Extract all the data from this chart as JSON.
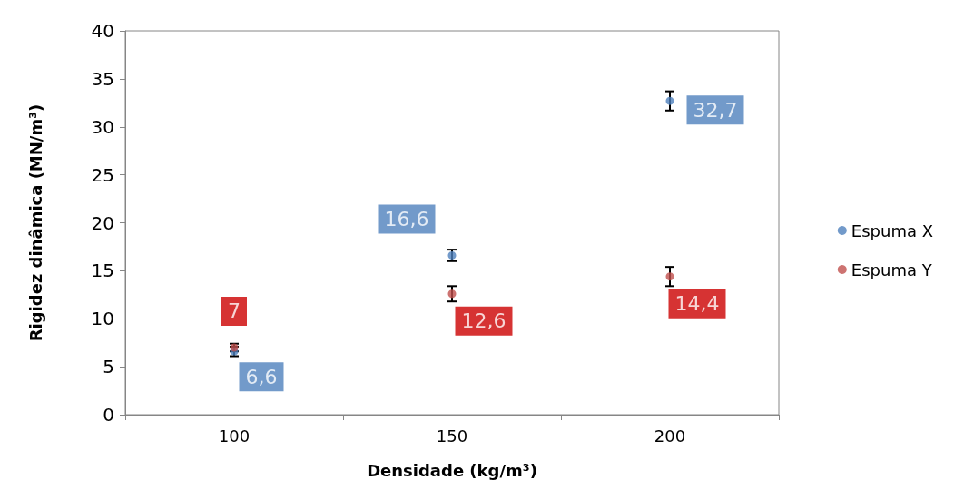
{
  "chart_data": {
    "type": "scatter",
    "xlabel": "Densidade (kg/m³)",
    "ylabel": "Rigidez dinâmica (MN/m³)",
    "categories": [
      "100",
      "150",
      "200"
    ],
    "series": [
      {
        "name": "Espuma X",
        "color": "#4f81bd",
        "values": [
          6.6,
          16.6,
          32.7
        ],
        "errors": [
          0.5,
          0.6,
          1.0
        ],
        "value_labels": [
          "6,6",
          "16,6",
          "32,7"
        ]
      },
      {
        "name": "Espuma Y",
        "color": "#c0504d",
        "values": [
          7,
          12.6,
          14.4
        ],
        "errors": [
          0.4,
          0.8,
          1.0
        ],
        "value_labels": [
          "7",
          "12,6",
          "14,4"
        ]
      }
    ],
    "ylim": [
      0,
      40
    ],
    "yticks": [
      0,
      5,
      10,
      15,
      20,
      25,
      30,
      35,
      40
    ],
    "grid": false,
    "legend": "right",
    "marker": "circle"
  }
}
